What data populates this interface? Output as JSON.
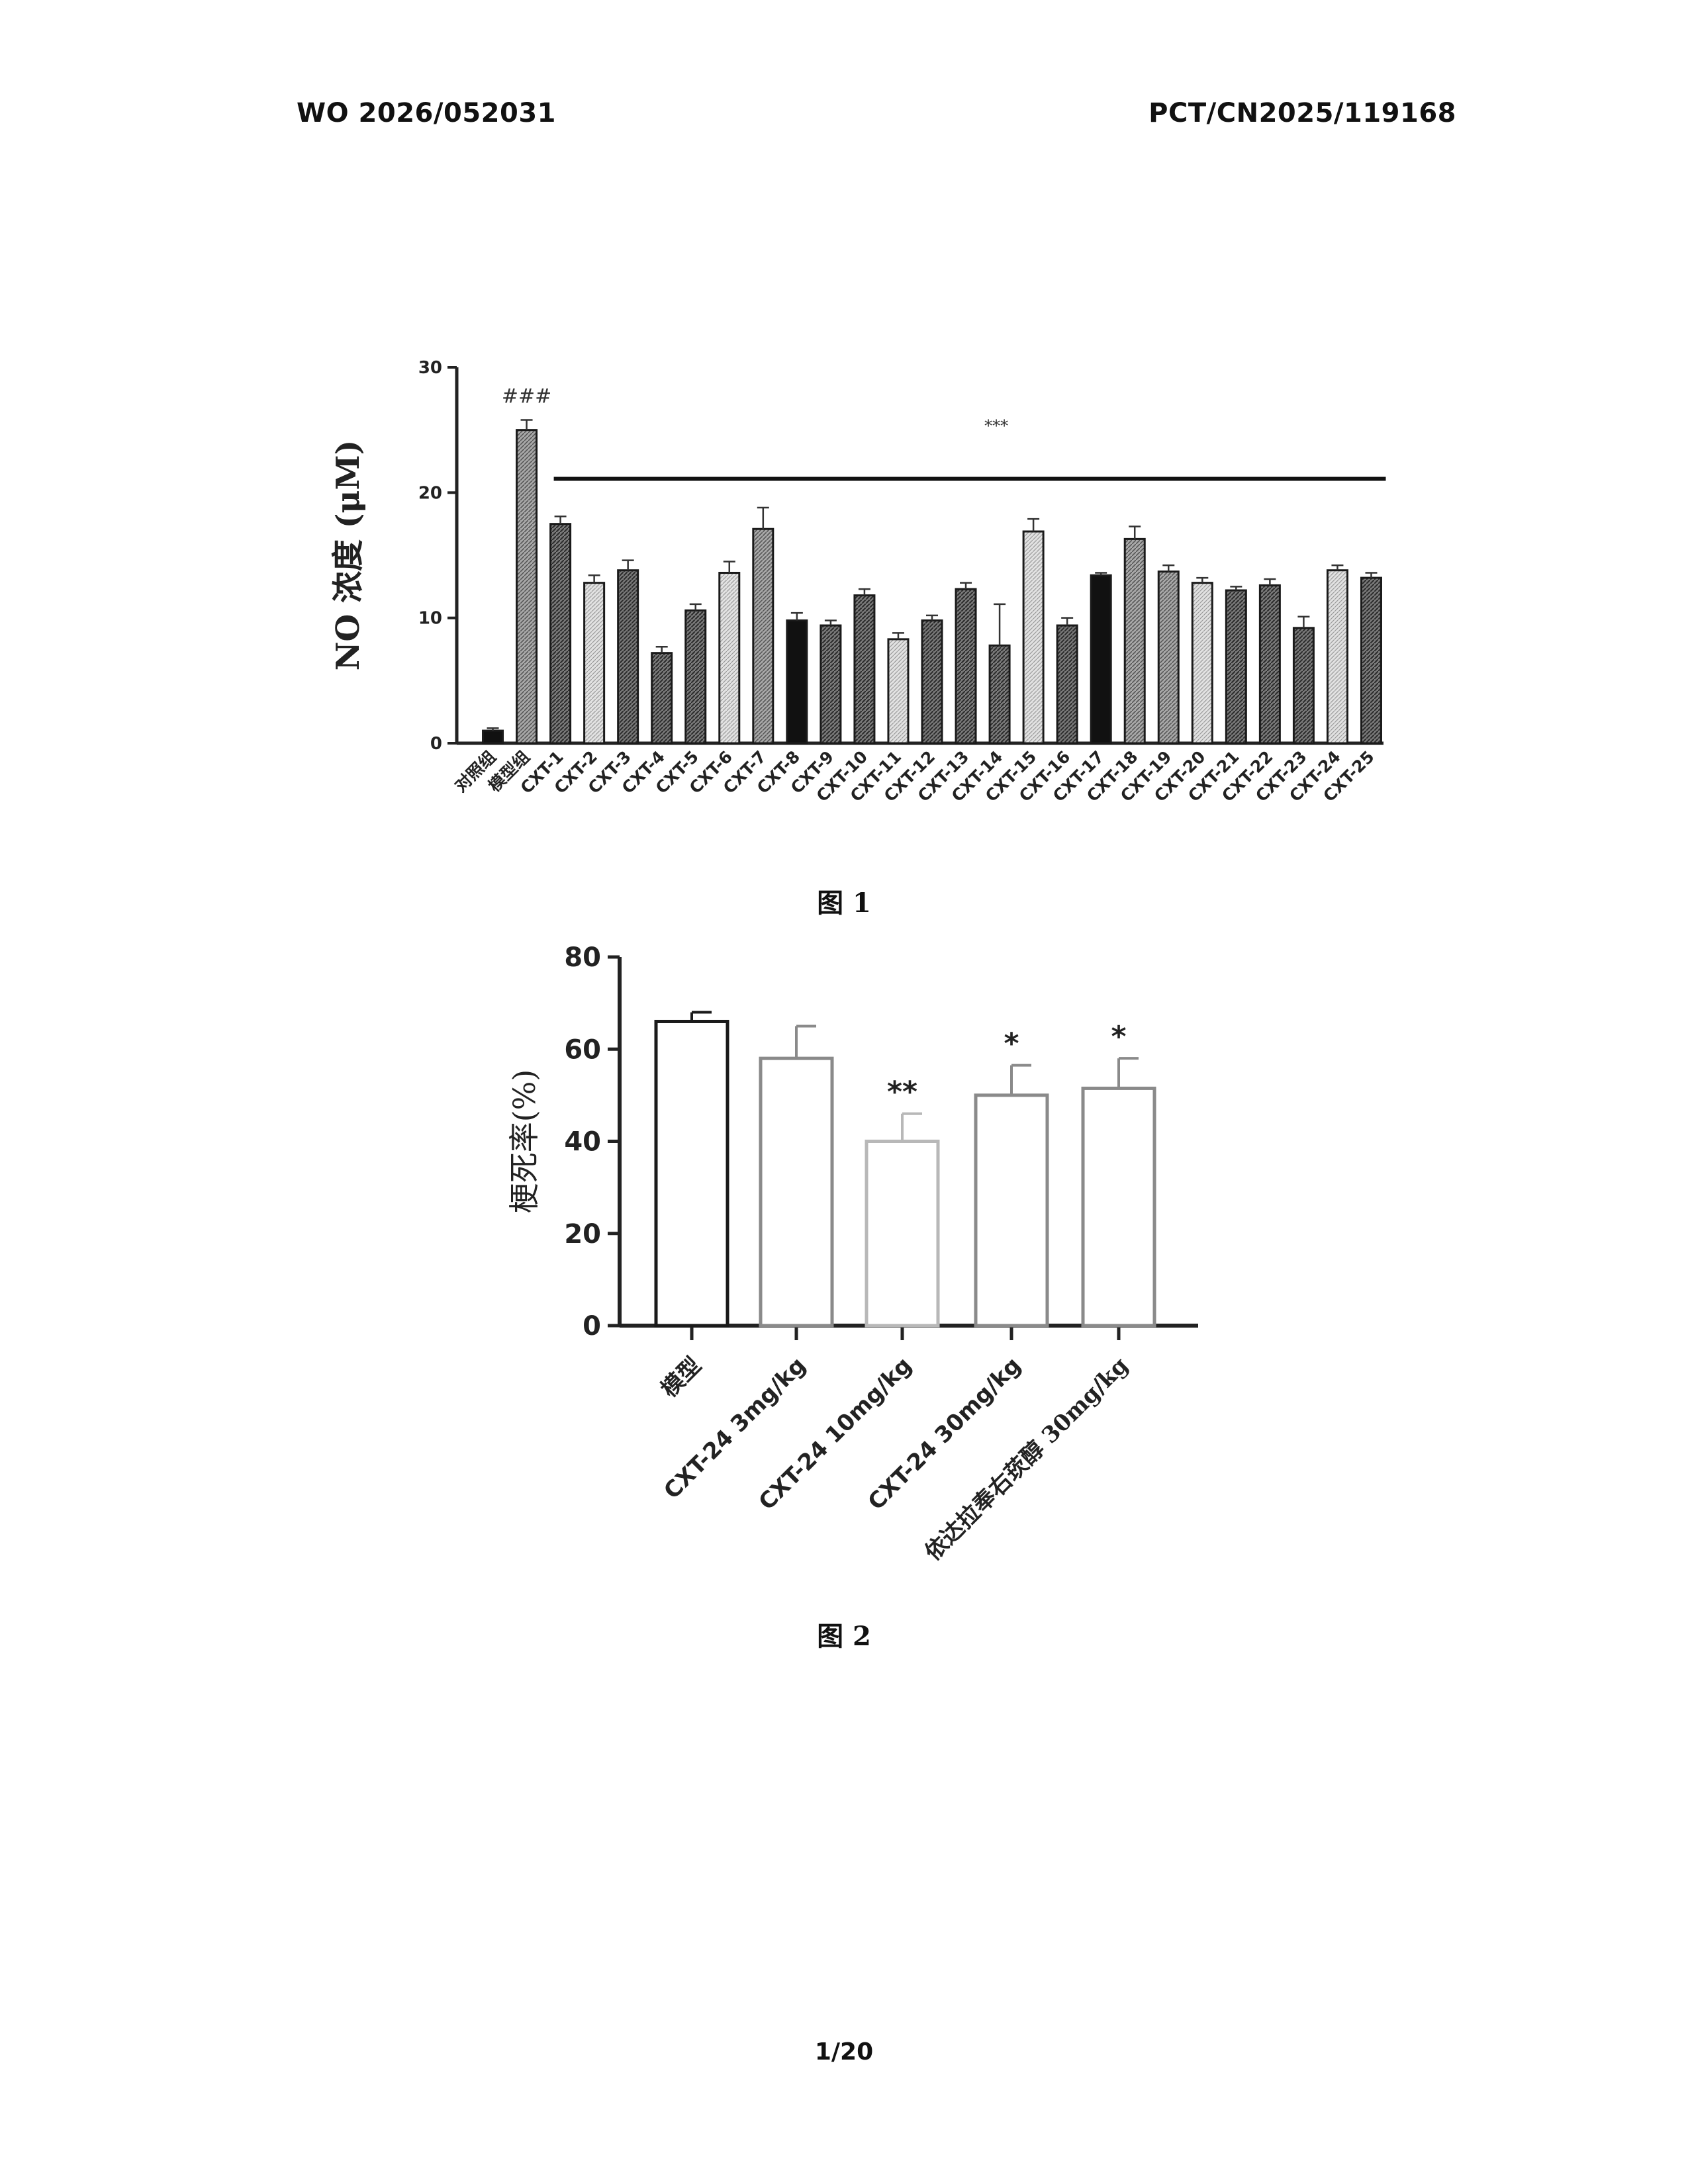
{
  "header": {
    "publication_number": "WO 2026/052031",
    "application_number": "PCT/CN2025/119168"
  },
  "figures": {
    "fig1_caption": "图 1",
    "fig2_caption": "图 2"
  },
  "page_number": "1/20",
  "colors": {
    "bar_outline": "#1a1a1a",
    "black_bar": "#111111",
    "dark_hatch": "#6b6b6b",
    "medium_hatch": "#9a9a9a",
    "light_hatch": "#d0d0d0",
    "fig2_light_bar": "#b8b8b8"
  },
  "chart_data": [
    {
      "type": "bar",
      "ylabel": "NO 浓度 (μM)",
      "ylim": [
        0,
        30
      ],
      "yticks": [
        0,
        10,
        20,
        30
      ],
      "categories": [
        "对照组",
        "模型组",
        "CXT-1",
        "CXT-2",
        "CXT-3",
        "CXT-4",
        "CXT-5",
        "CXT-6",
        "CXT-7",
        "CXT-8",
        "CXT-9",
        "CXT-10",
        "CXT-11",
        "CXT-12",
        "CXT-13",
        "CXT-14",
        "CXT-15",
        "CXT-16",
        "CXT-17",
        "CXT-18",
        "CXT-19",
        "CXT-20",
        "CXT-21",
        "CXT-22",
        "CXT-23",
        "CXT-24",
        "CXT-25"
      ],
      "values": [
        1.0,
        25.0,
        17.5,
        12.8,
        13.8,
        7.2,
        10.6,
        13.6,
        17.1,
        9.8,
        9.4,
        11.8,
        8.3,
        9.8,
        12.3,
        7.8,
        16.9,
        9.4,
        13.4,
        16.3,
        13.7,
        12.8,
        12.2,
        12.6,
        9.2,
        13.8,
        13.2
      ],
      "errors": [
        0.2,
        0.8,
        0.6,
        0.6,
        0.8,
        0.5,
        0.5,
        0.9,
        1.7,
        0.6,
        0.4,
        0.5,
        0.5,
        0.4,
        0.5,
        3.3,
        1.0,
        0.6,
        0.2,
        1.0,
        0.5,
        0.4,
        0.3,
        0.5,
        0.9,
        0.4,
        0.4
      ],
      "fills": [
        "black",
        "medium",
        "dark",
        "light",
        "dark",
        "dark",
        "dark",
        "light",
        "medium",
        "black",
        "dark",
        "dark",
        "light",
        "dark",
        "dark",
        "dark",
        "light",
        "dark",
        "black",
        "medium",
        "medium",
        "light",
        "dark",
        "dark",
        "dark",
        "light",
        "dark"
      ],
      "annotations": [
        {
          "text": "###",
          "category": "模型组"
        },
        {
          "text": "***",
          "category": "CXT-14"
        }
      ],
      "significance_line_from": "CXT-1",
      "significance_line_to": "CXT-25"
    },
    {
      "type": "bar",
      "ylabel": "梗死率(%)",
      "ylim": [
        0,
        80
      ],
      "yticks": [
        0,
        20,
        40,
        60,
        80
      ],
      "categories": [
        "模型",
        "CXT-24 3mg/kg",
        "CXT-24 10mg/kg",
        "CXT-24 30mg/kg",
        "依达拉奉右莰醇 30mg/kg"
      ],
      "values": [
        66,
        58,
        40,
        50,
        51.5
      ],
      "errors": [
        2.0,
        7.0,
        6.0,
        6.5,
        6.5
      ],
      "annotations": [
        "",
        "",
        "**",
        "*",
        "*"
      ],
      "bar_colors": [
        "#1a1a1a",
        "#8a8a8a",
        "#b8b8b8",
        "#8a8a8a",
        "#8a8a8a"
      ]
    }
  ]
}
